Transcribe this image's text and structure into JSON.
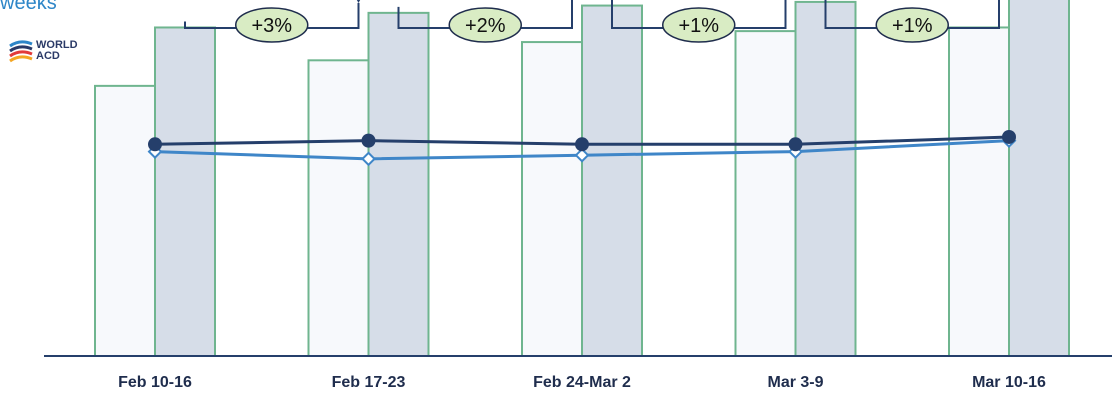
{
  "title": "weeks",
  "logo": {
    "line1": "WORLD",
    "line2": "ACD"
  },
  "colors": {
    "bar_prev_fill": "#f7f9fc",
    "bar_cur_fill": "#d6dde8",
    "bar_stroke": "#6fb58f",
    "line_dark": "#253f6b",
    "line_light": "#3f86c8",
    "badge_fill": "#d9ecc4",
    "arrow": "#253f6b"
  },
  "chart_data": {
    "type": "bar",
    "categories": [
      "Feb 10-16",
      "Feb 17-23",
      "Feb 24-Mar 2",
      "Mar 3-9",
      "Mar 10-16"
    ],
    "series": [
      {
        "values": [
          74,
          81,
          86,
          89,
          90
        ]
      },
      {
        "values": [
          90,
          94,
          96,
          97,
          98
        ]
      }
    ],
    "lines": [
      {
        "values": [
          58,
          59,
          58,
          58,
          60
        ]
      },
      {
        "values": [
          56,
          54,
          55,
          56,
          59
        ]
      }
    ],
    "changes": [
      "+3%",
      "+2%",
      "+1%",
      "+1%"
    ],
    "ylim": [
      0,
      100
    ],
    "grid": false
  }
}
